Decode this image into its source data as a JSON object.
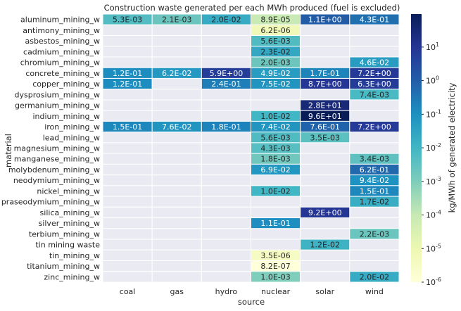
{
  "chart_data": {
    "type": "heatmap",
    "title": "Construction waste generated per each MWh produced (fuel is excluded)",
    "xlabel": "source",
    "ylabel": "material",
    "x_categories": [
      "coal",
      "gas",
      "hydro",
      "nuclear",
      "solar",
      "wind"
    ],
    "y_categories": [
      "aluminum_mining_w",
      "antimony_mining_w",
      "asbestos_mining_w",
      "cadmium_mining_w",
      "chromium_mining_w",
      "concrete_mining_w",
      "copper_mining_w",
      "dysprosium_mining_w",
      "germanium_mining_w",
      "indium_mining_w",
      "iron_mining_w",
      "lead_mining_w",
      "magnesium_mining_w",
      "manganese_mining_w",
      "molybdenum_mining_w",
      "neodymium_mining_w",
      "nickel_mining_w",
      "praseodymium_mining_w",
      "silica_mining_w",
      "silver_mining_w",
      "terbium_mining_w",
      "tin mining waste",
      "tin_mining_w",
      "titanium_mining_w",
      "zinc_mining_w"
    ],
    "values": [
      [
        "5.3E-03",
        "2.1E-03",
        "2.0E-02",
        "8.9E-05",
        "1.1E+00",
        "4.3E-01"
      ],
      [
        null,
        null,
        null,
        "6.2E-06",
        null,
        null
      ],
      [
        null,
        null,
        null,
        "5.6E-03",
        null,
        null
      ],
      [
        null,
        null,
        null,
        "2.3E-02",
        null,
        null
      ],
      [
        null,
        null,
        null,
        "2.0E-03",
        null,
        "4.6E-02"
      ],
      [
        "1.2E-01",
        "6.2E-02",
        "5.9E+00",
        "4.9E-02",
        "1.7E-01",
        "7.2E+00"
      ],
      [
        "1.2E-01",
        null,
        "2.4E-01",
        "7.5E-02",
        "8.7E+00",
        "6.3E+00"
      ],
      [
        null,
        null,
        null,
        null,
        null,
        "7.4E-03"
      ],
      [
        null,
        null,
        null,
        null,
        "2.8E+01",
        null
      ],
      [
        null,
        null,
        null,
        "1.0E-02",
        "9.6E+01",
        null
      ],
      [
        "1.5E-01",
        "7.6E-02",
        "1.8E-01",
        "7.4E-02",
        "7.6E-01",
        "7.2E+00"
      ],
      [
        null,
        null,
        null,
        "5.6E-03",
        "3.5E-03",
        null
      ],
      [
        null,
        null,
        null,
        "4.3E-03",
        null,
        null
      ],
      [
        null,
        null,
        null,
        "1.8E-03",
        null,
        "3.4E-03"
      ],
      [
        null,
        null,
        null,
        "6.9E-02",
        null,
        "6.2E-01"
      ],
      [
        null,
        null,
        null,
        null,
        null,
        "9.4E-02"
      ],
      [
        null,
        null,
        null,
        "1.0E-02",
        null,
        "1.5E-01"
      ],
      [
        null,
        null,
        null,
        null,
        null,
        "1.7E-02"
      ],
      [
        null,
        null,
        null,
        null,
        "9.2E+00",
        null
      ],
      [
        null,
        null,
        null,
        "1.1E-01",
        null,
        null
      ],
      [
        null,
        null,
        null,
        null,
        null,
        "2.2E-03"
      ],
      [
        null,
        null,
        null,
        null,
        "1.2E-02",
        null
      ],
      [
        null,
        null,
        null,
        "3.5E-06",
        null,
        null
      ],
      [
        null,
        null,
        null,
        "8.2E-07",
        null,
        null
      ],
      [
        null,
        null,
        null,
        "1.0E-03",
        null,
        "2.0E-02"
      ]
    ],
    "colorbar": {
      "label": "kg/MWh of generated electricity",
      "scale": "log",
      "range": [
        1e-06,
        96
      ],
      "colormap": "YlGnBu",
      "ticks": [
        {
          "base": "10",
          "exp": "1",
          "value": 10
        },
        {
          "base": "10",
          "exp": "0",
          "value": 1
        },
        {
          "base": "10",
          "exp": "-1",
          "value": 0.1
        },
        {
          "base": "10",
          "exp": "-2",
          "value": 0.01
        },
        {
          "base": "10",
          "exp": "-3",
          "value": 0.001
        },
        {
          "base": "10",
          "exp": "-4",
          "value": 0.0001
        },
        {
          "base": "10",
          "exp": "-5",
          "value": 1e-05
        },
        {
          "base": "10",
          "exp": "-6",
          "value": 1e-06
        }
      ]
    },
    "missing_color": "#eaeaf2",
    "grid": false
  }
}
